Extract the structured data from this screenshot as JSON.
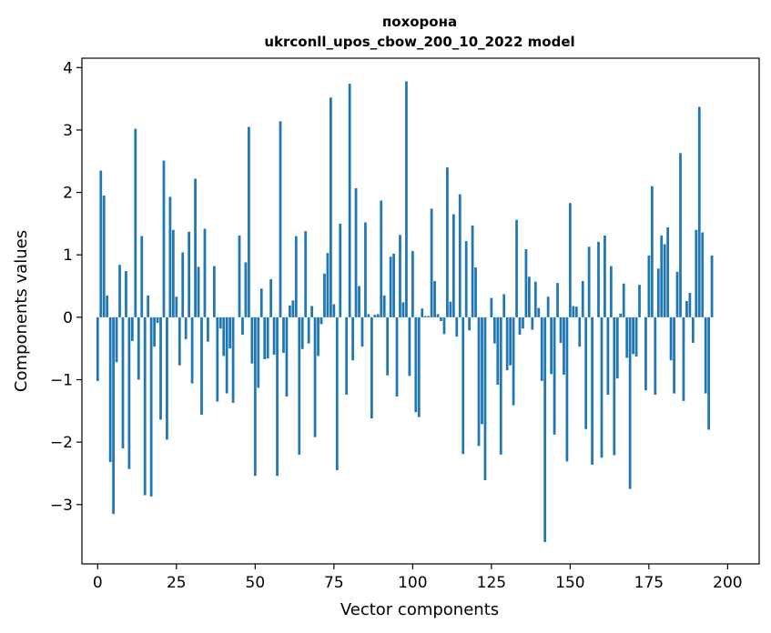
{
  "chart_data": {
    "type": "bar",
    "title": "похорона",
    "subtitle": "ukrconll_upos_cbow_200_10_2022 model",
    "xlabel": "Vector components",
    "ylabel": "Components values",
    "xlim": [
      -5,
      210
    ],
    "ylim": [
      -3.95,
      4.15
    ],
    "xticks": [
      0,
      25,
      50,
      75,
      100,
      125,
      150,
      175,
      200
    ],
    "yticks": [
      -3,
      -2,
      -1,
      0,
      1,
      2,
      3,
      4
    ],
    "bar_color": "#1f77b4",
    "grid": false,
    "legend": "none",
    "values": [
      -1.02,
      2.35,
      1.95,
      0.35,
      -2.32,
      -3.15,
      -0.72,
      0.84,
      -2.1,
      0.74,
      -2.43,
      -0.38,
      3.02,
      -1.0,
      1.3,
      -2.85,
      0.35,
      -2.87,
      -0.47,
      -0.09,
      -1.64,
      2.51,
      -1.96,
      1.93,
      1.4,
      0.33,
      -0.77,
      1.04,
      -0.35,
      1.37,
      -1.06,
      2.22,
      0.81,
      -1.56,
      1.42,
      -0.39,
      0.0,
      0.82,
      -1.35,
      -0.18,
      -0.62,
      -1.22,
      -0.5,
      -1.37,
      0.0,
      1.31,
      -0.28,
      0.88,
      3.05,
      -0.74,
      -2.54,
      -1.13,
      0.46,
      -0.67,
      -0.66,
      0.61,
      -0.6,
      -2.54,
      3.14,
      -0.57,
      -1.27,
      0.19,
      0.27,
      1.3,
      -2.2,
      -0.51,
      1.38,
      -0.42,
      0.18,
      -1.92,
      -0.62,
      -0.11,
      0.7,
      1.03,
      3.52,
      0.21,
      -2.45,
      1.5,
      0.0,
      -1.24,
      3.74,
      -0.69,
      2.07,
      0.5,
      -0.47,
      1.52,
      0.05,
      -1.62,
      0.04,
      0.05,
      1.87,
      0.35,
      -0.93,
      0.97,
      1.02,
      -1.27,
      1.32,
      0.24,
      3.78,
      -0.94,
      1.06,
      -1.52,
      -1.6,
      0.14,
      0.02,
      0.02,
      1.74,
      0.58,
      0.05,
      -0.06,
      -0.27,
      2.4,
      0.25,
      1.65,
      -0.31,
      1.97,
      -2.19,
      1.22,
      -0.21,
      1.47,
      0.8,
      -2.06,
      -1.71,
      -2.61,
      0.0,
      0.31,
      -0.42,
      -1.08,
      -2.2,
      0.37,
      -0.85,
      -0.77,
      -1.41,
      1.56,
      -0.28,
      -0.18,
      1.09,
      0.65,
      -0.2,
      0.57,
      0.15,
      -1.02,
      -3.6,
      0.33,
      -0.91,
      -1.88,
      0.55,
      -0.41,
      -0.92,
      -2.31,
      1.83,
      0.18,
      0.17,
      -0.47,
      0.58,
      -1.79,
      1.13,
      -2.36,
      0.0,
      1.21,
      -2.25,
      1.31,
      -1.24,
      0.82,
      -2.21,
      -0.98,
      0.06,
      0.54,
      -0.65,
      -2.75,
      -0.59,
      -0.63,
      0.52,
      0.0,
      -1.17,
      0.99,
      2.1,
      -1.24,
      0.78,
      1.31,
      1.17,
      1.44,
      -0.69,
      -1.22,
      0.73,
      2.63,
      -1.34,
      0.26,
      0.39,
      -0.41,
      1.4,
      3.37,
      1.36,
      -1.22,
      -1.8,
      0.99
    ]
  }
}
